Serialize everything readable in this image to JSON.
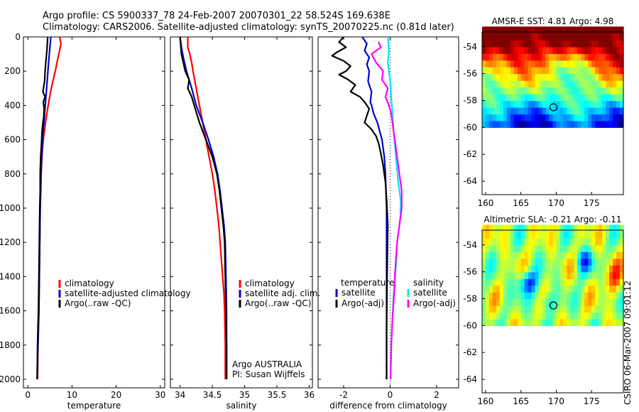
{
  "header": {
    "title_line1": "Argo profile: CS 5900337_78 24-Feb-2007 20070301_22 58.524S 169.638E",
    "title_line2": "Climatology: CARS2006. Satellite-adjusted climatology: synTS_20070225.nc (0.81d later)"
  },
  "side_label": "CSIRO 06-Mar-2007 09:01:12",
  "colors": {
    "climatology": "#ff0000",
    "satellite": "#0000cc",
    "argo": "#000000",
    "salinity_satellite": "#00e5ee",
    "salinity_argo": "#ff00ff"
  },
  "chart_data": [
    {
      "type": "line",
      "xlabel": "temperature",
      "xlim": [
        -1,
        31
      ],
      "ylim": [
        2050,
        0
      ],
      "xticks": [
        "0",
        "10",
        "20",
        "30"
      ],
      "yticks": [
        "0",
        "200",
        "400",
        "600",
        "800",
        "1000",
        "1200",
        "1400",
        "1600",
        "1800",
        "2000"
      ],
      "legend": [
        "climatology",
        "satellite-adjusted climatology",
        "Argo(..raw -QC)"
      ],
      "series": [
        {
          "name": "climatology",
          "color": "climatology",
          "points": [
            [
              7.2,
              0
            ],
            [
              7.5,
              40
            ],
            [
              7.0,
              100
            ],
            [
              6.2,
              200
            ],
            [
              5.3,
              300
            ],
            [
              4.6,
              400
            ],
            [
              4.0,
              500
            ],
            [
              3.5,
              600
            ],
            [
              3.2,
              700
            ],
            [
              3.0,
              800
            ],
            [
              2.9,
              900
            ],
            [
              2.8,
              1000
            ],
            [
              2.7,
              1200
            ],
            [
              2.6,
              1400
            ],
            [
              2.5,
              1600
            ],
            [
              2.3,
              1800
            ],
            [
              2.2,
              2000
            ]
          ]
        },
        {
          "name": "satellite-adjusted climatology",
          "color": "satellite",
          "points": [
            [
              5.2,
              0
            ],
            [
              5.0,
              60
            ],
            [
              4.7,
              150
            ],
            [
              4.4,
              250
            ],
            [
              4.1,
              350
            ],
            [
              3.8,
              450
            ],
            [
              3.5,
              550
            ],
            [
              3.2,
              650
            ],
            [
              3.0,
              800
            ],
            [
              2.9,
              900
            ],
            [
              2.8,
              1000
            ],
            [
              2.7,
              1200
            ],
            [
              2.6,
              1400
            ],
            [
              2.5,
              1600
            ],
            [
              2.3,
              1800
            ],
            [
              2.1,
              2000
            ]
          ]
        },
        {
          "name": "Argo(..raw -QC)",
          "color": "argo",
          "points": [
            [
              4.5,
              0
            ],
            [
              4.3,
              80
            ],
            [
              4.1,
              140
            ],
            [
              3.9,
              200
            ],
            [
              3.8,
              260
            ],
            [
              3.4,
              320
            ],
            [
              3.9,
              350
            ],
            [
              3.5,
              380
            ],
            [
              3.7,
              420
            ],
            [
              3.6,
              470
            ],
            [
              3.4,
              500
            ],
            [
              3.2,
              560
            ],
            [
              3.1,
              620
            ],
            [
              2.9,
              700
            ],
            [
              2.8,
              800
            ],
            [
              2.8,
              900
            ],
            [
              2.7,
              1000
            ],
            [
              2.6,
              1200
            ],
            [
              2.5,
              1400
            ],
            [
              2.4,
              1600
            ],
            [
              2.2,
              1800
            ],
            [
              2.1,
              2000
            ]
          ]
        }
      ]
    },
    {
      "type": "line",
      "xlabel": "salinity",
      "xlim": [
        33.85,
        36.05
      ],
      "ylim": [
        2050,
        0
      ],
      "xticks": [
        "34",
        "34.5",
        "35",
        "35.5",
        "36"
      ],
      "legend": [
        "climatology",
        "satellite adj. clim.",
        "Argo(..raw -QC)"
      ],
      "annotations": [
        "Argo AUSTRALIA",
        "PI: Susan Wijffels"
      ],
      "series": [
        {
          "name": "climatology",
          "color": "climatology",
          "points": [
            [
              34.12,
              0
            ],
            [
              34.12,
              60
            ],
            [
              34.15,
              100
            ],
            [
              34.18,
              150
            ],
            [
              34.2,
              200
            ],
            [
              34.25,
              300
            ],
            [
              34.3,
              400
            ],
            [
              34.35,
              500
            ],
            [
              34.4,
              600
            ],
            [
              34.45,
              700
            ],
            [
              34.5,
              800
            ],
            [
              34.54,
              900
            ],
            [
              34.57,
              1000
            ],
            [
              34.6,
              1100
            ],
            [
              34.62,
              1200
            ],
            [
              34.64,
              1300
            ],
            [
              34.66,
              1400
            ],
            [
              34.68,
              1500
            ],
            [
              34.69,
              1600
            ],
            [
              34.7,
              1800
            ],
            [
              34.7,
              2000
            ]
          ]
        },
        {
          "name": "satellite adj. clim.",
          "color": "satellite",
          "points": [
            [
              34.0,
              0
            ],
            [
              34.02,
              60
            ],
            [
              34.05,
              120
            ],
            [
              34.1,
              200
            ],
            [
              34.18,
              300
            ],
            [
              34.25,
              400
            ],
            [
              34.35,
              500
            ],
            [
              34.44,
              600
            ],
            [
              34.52,
              700
            ],
            [
              34.58,
              800
            ],
            [
              34.62,
              900
            ],
            [
              34.65,
              1000
            ],
            [
              34.68,
              1100
            ],
            [
              34.7,
              1200
            ],
            [
              34.71,
              1400
            ],
            [
              34.72,
              1600
            ],
            [
              34.72,
              1800
            ],
            [
              34.72,
              2000
            ]
          ]
        },
        {
          "name": "Argo(..raw -QC)",
          "color": "argo",
          "points": [
            [
              34.0,
              0
            ],
            [
              34.02,
              100
            ],
            [
              34.08,
              200
            ],
            [
              34.14,
              250
            ],
            [
              34.12,
              300
            ],
            [
              34.18,
              350
            ],
            [
              34.22,
              400
            ],
            [
              34.3,
              500
            ],
            [
              34.4,
              600
            ],
            [
              34.5,
              700
            ],
            [
              34.57,
              800
            ],
            [
              34.61,
              900
            ],
            [
              34.64,
              1000
            ],
            [
              34.67,
              1100
            ],
            [
              34.69,
              1200
            ],
            [
              34.7,
              1400
            ],
            [
              34.71,
              1600
            ],
            [
              34.72,
              1800
            ],
            [
              34.72,
              2000
            ]
          ]
        }
      ]
    },
    {
      "type": "line",
      "xlabel": "difference from climatology",
      "xlim": [
        -3.1,
        2.95
      ],
      "ylim": [
        2050,
        0
      ],
      "xticks": [
        "-2",
        "0",
        "2"
      ],
      "legend": [
        "temperature",
        "satellite",
        "Argo(-adj)",
        "salinity",
        "satellite",
        "Argo(-adj)"
      ],
      "series": [
        {
          "name": "satellite",
          "group": "temperature",
          "color": "satellite",
          "points": [
            [
              -1.2,
              0
            ],
            [
              -1.0,
              40
            ],
            [
              -1.1,
              80
            ],
            [
              -0.9,
              120
            ],
            [
              -1.0,
              160
            ],
            [
              -0.9,
              200
            ],
            [
              -0.95,
              260
            ],
            [
              -0.8,
              320
            ],
            [
              -0.85,
              380
            ],
            [
              -0.8,
              400
            ],
            [
              -0.7,
              450
            ],
            [
              -0.55,
              500
            ],
            [
              -0.45,
              550
            ],
            [
              -0.35,
              600
            ],
            [
              -0.3,
              650
            ],
            [
              -0.25,
              700
            ],
            [
              -0.2,
              800
            ],
            [
              -0.18,
              900
            ],
            [
              -0.15,
              1000
            ],
            [
              -0.15,
              1200
            ],
            [
              -0.15,
              1400
            ],
            [
              -0.15,
              1600
            ],
            [
              -0.15,
              1800
            ],
            [
              -0.15,
              2000
            ]
          ]
        },
        {
          "name": "Argo(-adj)",
          "group": "temperature",
          "color": "argo",
          "points": [
            [
              -2.0,
              0
            ],
            [
              -2.2,
              30
            ],
            [
              -1.9,
              60
            ],
            [
              -2.3,
              90
            ],
            [
              -2.5,
              110
            ],
            [
              -2.0,
              140
            ],
            [
              -1.7,
              170
            ],
            [
              -1.9,
              200
            ],
            [
              -2.2,
              220
            ],
            [
              -1.8,
              250
            ],
            [
              -1.5,
              280
            ],
            [
              -1.7,
              320
            ],
            [
              -1.3,
              350
            ],
            [
              -1.1,
              380
            ],
            [
              -0.9,
              420
            ],
            [
              -1.0,
              460
            ],
            [
              -1.1,
              500
            ],
            [
              -0.8,
              540
            ],
            [
              -0.6,
              580
            ],
            [
              -0.5,
              620
            ],
            [
              -0.4,
              680
            ],
            [
              -0.3,
              750
            ],
            [
              -0.2,
              850
            ],
            [
              -0.15,
              950
            ],
            [
              -0.1,
              1100
            ],
            [
              -0.12,
              1300
            ],
            [
              -0.14,
              1500
            ],
            [
              -0.15,
              1700
            ],
            [
              -0.15,
              1900
            ],
            [
              -0.15,
              2000
            ]
          ]
        },
        {
          "name": "satellite",
          "group": "salinity",
          "color": "salinity_satellite",
          "points": [
            [
              -0.1,
              0
            ],
            [
              -0.05,
              80
            ],
            [
              -0.1,
              150
            ],
            [
              0.0,
              250
            ],
            [
              0.05,
              350
            ],
            [
              0.1,
              450
            ],
            [
              0.15,
              550
            ],
            [
              0.25,
              700
            ],
            [
              0.35,
              850
            ],
            [
              0.45,
              950
            ],
            [
              0.45,
              1050
            ],
            [
              0.3,
              1200
            ],
            [
              0.25,
              1350
            ],
            [
              0.15,
              1500
            ],
            [
              0.1,
              1650
            ],
            [
              0.05,
              1800
            ],
            [
              0.02,
              2000
            ]
          ]
        },
        {
          "name": "Argo(-adj)",
          "group": "salinity",
          "color": "salinity_argo",
          "points": [
            [
              -0.5,
              30
            ],
            [
              -0.4,
              60
            ],
            [
              -0.8,
              100
            ],
            [
              -0.6,
              150
            ],
            [
              -0.3,
              200
            ],
            [
              -0.35,
              250
            ],
            [
              -0.1,
              300
            ],
            [
              -0.2,
              350
            ],
            [
              -0.05,
              400
            ],
            [
              0.05,
              450
            ],
            [
              0.1,
              500
            ],
            [
              0.2,
              600
            ],
            [
              0.3,
              700
            ],
            [
              0.4,
              800
            ],
            [
              0.5,
              900
            ],
            [
              0.5,
              1000
            ],
            [
              0.4,
              1100
            ],
            [
              0.3,
              1200
            ],
            [
              0.25,
              1300
            ],
            [
              0.2,
              1400
            ],
            [
              0.2,
              1450
            ],
            [
              0.15,
              1550
            ],
            [
              0.1,
              1650
            ],
            [
              0.05,
              1800
            ],
            [
              0.02,
              2000
            ]
          ]
        }
      ]
    },
    {
      "type": "heatmap",
      "title": "AMSR-E SST: 4.81 Argo: 4.98",
      "xlim": [
        159.5,
        179.5
      ],
      "ylim": [
        -65,
        -52.9
      ],
      "xticks": [
        "160",
        "165",
        "170",
        "175"
      ],
      "yticks": [
        "-54",
        "-56",
        "-58",
        "-60",
        "-62",
        "-64"
      ],
      "data_ylim": [
        -60,
        -52.9
      ],
      "marker": [
        169.6,
        -58.5
      ],
      "value_range": [
        2,
        9
      ]
    },
    {
      "type": "heatmap",
      "title": "Altimetric SLA: -0.21 Argo: -0.11",
      "xlim": [
        159.5,
        179.5
      ],
      "ylim": [
        -65,
        -52.9
      ],
      "xticks": [
        "160",
        "165",
        "170",
        "175"
      ],
      "yticks": [
        "-54",
        "-56",
        "-58",
        "-60",
        "-62",
        "-64"
      ],
      "data_ylim": [
        -60,
        -52.9
      ],
      "marker": [
        169.6,
        -58.5
      ],
      "value_range": [
        -0.5,
        0.5
      ]
    }
  ]
}
